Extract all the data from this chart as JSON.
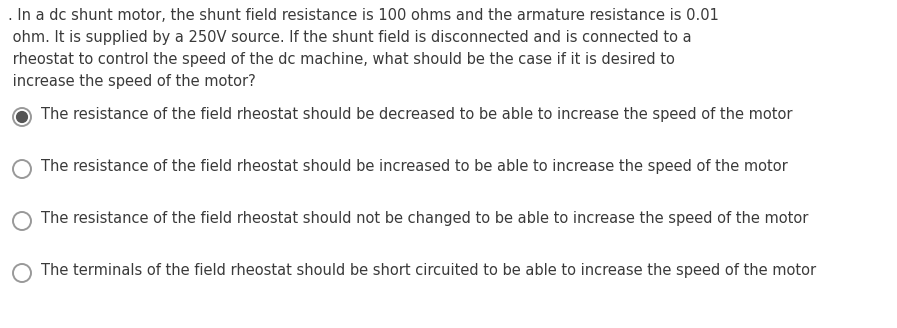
{
  "background_color": "#ffffff",
  "question_lines": [
    ". In a dc shunt motor, the shunt field resistance is 100 ohms and the armature resistance is 0.01",
    " ohm. It is supplied by a 250V source. If the shunt field is disconnected and is connected to a",
    " rheostat to control the speed of the dc machine, what should be the case if it is desired to",
    " increase the speed of the motor?"
  ],
  "choices": [
    "The resistance of the field rheostat should be decreased to be able to increase the speed of the motor",
    "The resistance of the field rheostat should be increased to be able to increase the speed of the motor",
    "The resistance of the field rheostat should not be changed to be able to increase the speed of the motor",
    "The terminals of the field rheostat should be short circuited to be able to increase the speed of the motor"
  ],
  "selected_index": 0,
  "text_color": "#3a3a3a",
  "font_size": 10.5,
  "question_font_size": 10.5,
  "circle_color": "#888888",
  "circle_edge_color": "#999999",
  "selected_fill": "#555555",
  "unselected_fill": "#ffffff",
  "fig_width": 8.97,
  "fig_height": 3.28,
  "dpi": 100
}
